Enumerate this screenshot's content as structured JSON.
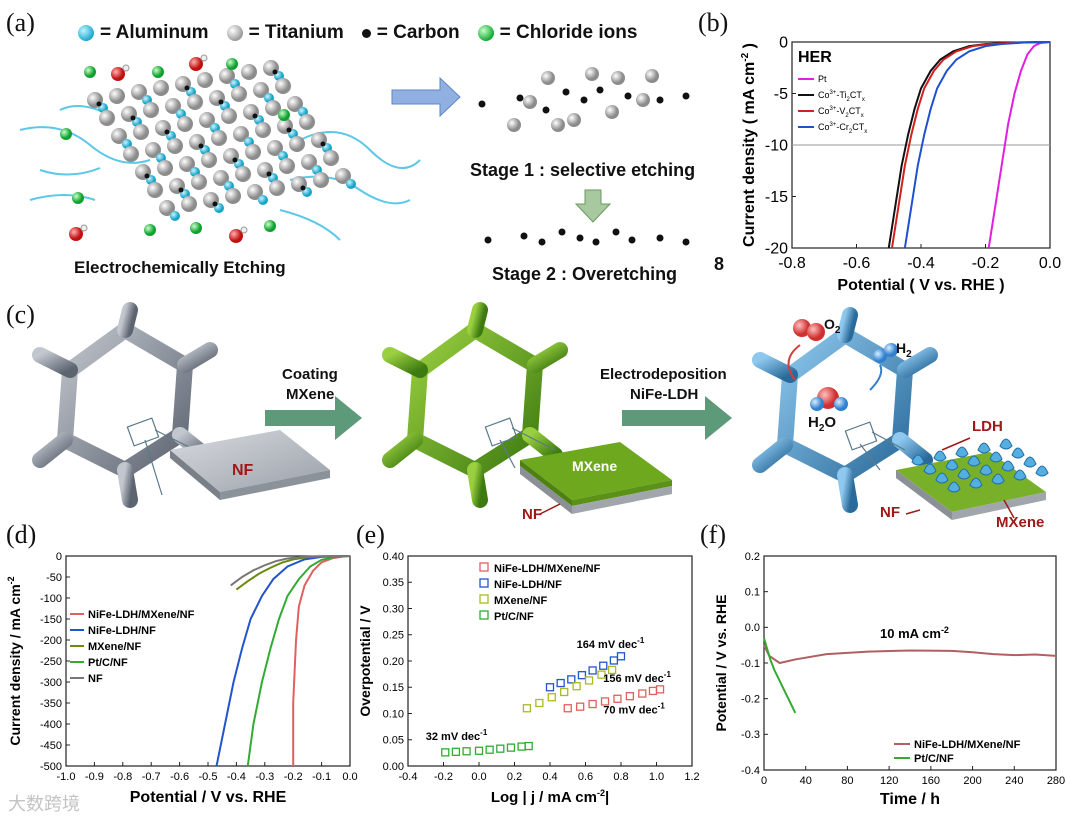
{
  "panels": {
    "a": "(a)",
    "b": "(b)",
    "c": "(c)",
    "d": "(d)",
    "e": "(e)",
    "f": "(f)"
  },
  "panel_a": {
    "legend": [
      {
        "label": "= Aluminum",
        "color": "#1aa9cf",
        "icon": "aluminum-ball-icon"
      },
      {
        "label": "= Titanium",
        "color": "#9a9a9a",
        "icon": "titanium-ball-icon"
      },
      {
        "label": "= Carbon",
        "color": "#111111",
        "icon": "carbon-dot-icon"
      },
      {
        "label": "= Chloride ions",
        "color": "#11aa33",
        "icon": "chloride-ball-icon"
      }
    ],
    "caption_left": "Electrochemically Etching",
    "stage1": "Stage 1 : selective etching",
    "stage2": "Stage 2 : Overetching",
    "stray": "8"
  },
  "panel_c": {
    "step1": "Coating",
    "step1b": "MXene",
    "step2": "Electrodeposition",
    "step2b": "NiFe-LDH",
    "nf": "NF",
    "mxene": "MXene",
    "nf2": "NF",
    "o2": "O",
    "o2sub": "2",
    "h2": "H",
    "h2sub": "2",
    "h2o": "H",
    "h2osub": "2",
    "h2oO": "O",
    "ldh": "LDH",
    "nf3": "NF",
    "mxene3": "MXene"
  },
  "watermark": "大数跨境",
  "chart_data": [
    {
      "id": "b",
      "type": "line",
      "title": "HER",
      "xlabel": "Potential ( V vs. RHE )",
      "ylabel": "Current density ( mA cm",
      "ylabel_sup": "-2",
      "ylabel_end": ")",
      "xlim": [
        -0.8,
        0.0
      ],
      "ylim": [
        -20,
        0
      ],
      "xticks": [
        "-0.8",
        "-0.6",
        "-0.4",
        "-0.2",
        "0.0"
      ],
      "yticks": [
        "0",
        "-5",
        "-10",
        "-15",
        "-20"
      ],
      "reference_line_y": -10,
      "series": [
        {
          "name": "Pt",
          "color": "#e020e0",
          "x": [
            -0.19,
            -0.17,
            -0.15,
            -0.13,
            -0.11,
            -0.09,
            -0.07,
            -0.05,
            -0.03,
            0.0
          ],
          "y": [
            -20,
            -16,
            -12,
            -8,
            -5,
            -2.8,
            -1.2,
            -0.4,
            -0.1,
            0
          ]
        },
        {
          "name": "Co3+-Ti2CTx",
          "color": "#111111",
          "x": [
            -0.5,
            -0.48,
            -0.46,
            -0.44,
            -0.42,
            -0.4,
            -0.37,
            -0.34,
            -0.3,
            -0.25,
            -0.2,
            -0.1,
            0.0
          ],
          "y": [
            -20,
            -16,
            -12,
            -9,
            -6.5,
            -4.5,
            -2.8,
            -1.7,
            -0.9,
            -0.4,
            -0.2,
            -0.05,
            0
          ]
        },
        {
          "name": "Co3+-V2CTx",
          "color": "#d02020",
          "x": [
            -0.49,
            -0.47,
            -0.45,
            -0.43,
            -0.41,
            -0.39,
            -0.36,
            -0.33,
            -0.29,
            -0.24,
            -0.19,
            -0.1,
            0.0
          ],
          "y": [
            -20,
            -16,
            -12,
            -9,
            -6.5,
            -4.5,
            -2.8,
            -1.7,
            -0.9,
            -0.4,
            -0.2,
            -0.05,
            0
          ]
        },
        {
          "name": "Co3+-Cr2CTx",
          "color": "#2050d0",
          "x": [
            -0.45,
            -0.43,
            -0.41,
            -0.39,
            -0.37,
            -0.35,
            -0.32,
            -0.29,
            -0.25,
            -0.2,
            -0.15,
            -0.08,
            0.0
          ],
          "y": [
            -20,
            -16,
            -12,
            -9,
            -6.5,
            -4.5,
            -2.8,
            -1.7,
            -0.9,
            -0.4,
            -0.2,
            -0.05,
            0
          ]
        }
      ],
      "legend_labels": [
        {
          "main": "Pt",
          "sup": "",
          "sub1": "",
          "mid": "",
          "sub2": ""
        },
        {
          "main": "Co",
          "sup": "3+",
          "mid": "-Ti",
          "sub1": "2",
          "end": "CT",
          "sub2": "x"
        },
        {
          "main": "Co",
          "sup": "3+",
          "mid": "-V",
          "sub1": "2",
          "end": "CT",
          "sub2": "x"
        },
        {
          "main": "Co",
          "sup": "3+",
          "mid": "-Cr",
          "sub1": "2",
          "end": "CT",
          "sub2": "x"
        }
      ]
    },
    {
      "id": "d",
      "type": "line",
      "xlabel": "Potential / V vs. RHE",
      "ylabel": "Current density / mA cm",
      "ylabel_sup": "-2",
      "xlim": [
        -1.0,
        0.0
      ],
      "ylim": [
        -500,
        0
      ],
      "xticks": [
        "-1.0",
        "-0.9",
        "-0.8",
        "-0.7",
        "-0.6",
        "-0.5",
        "-0.4",
        "-0.3",
        "-0.2",
        "-0.1",
        "0.0"
      ],
      "yticks": [
        "0",
        "-50",
        "-100",
        "-150",
        "-200",
        "-250",
        "-300",
        "-350",
        "-400",
        "-450",
        "-500"
      ],
      "series": [
        {
          "name": "NiFe-LDH/MXene/NF",
          "color": "#e06060",
          "x": [
            -0.2,
            -0.2,
            -0.19,
            -0.18,
            -0.16,
            -0.13,
            -0.1,
            -0.06,
            -0.02,
            0.0
          ],
          "y": [
            -500,
            -350,
            -200,
            -120,
            -70,
            -35,
            -15,
            -5,
            -1,
            0
          ]
        },
        {
          "name": "NiFe-LDH/NF",
          "color": "#2255cc",
          "x": [
            -0.47,
            -0.44,
            -0.41,
            -0.38,
            -0.35,
            -0.31,
            -0.27,
            -0.22,
            -0.16,
            -0.1,
            -0.04,
            0.0
          ],
          "y": [
            -500,
            -400,
            -300,
            -220,
            -150,
            -95,
            -55,
            -25,
            -8,
            -2,
            -0.5,
            0
          ]
        },
        {
          "name": "MXene/NF",
          "color": "#6a8a10",
          "x": [
            -0.4,
            -0.36,
            -0.32,
            -0.28,
            -0.24,
            -0.2,
            -0.15,
            -0.1,
            -0.05,
            0.0
          ],
          "y": [
            -80,
            -60,
            -42,
            -28,
            -16,
            -8,
            -3,
            -1,
            -0.2,
            0
          ]
        },
        {
          "name": "Pt/C/NF",
          "color": "#33aa33",
          "x": [
            -0.36,
            -0.34,
            -0.31,
            -0.28,
            -0.25,
            -0.22,
            -0.18,
            -0.14,
            -0.1,
            -0.05,
            0.0
          ],
          "y": [
            -500,
            -400,
            -300,
            -220,
            -150,
            -95,
            -55,
            -25,
            -9,
            -2,
            0
          ]
        },
        {
          "name": "NF",
          "color": "#777777",
          "x": [
            -0.42,
            -0.38,
            -0.34,
            -0.3,
            -0.26,
            -0.22,
            -0.17,
            -0.12,
            -0.06,
            0.0
          ],
          "y": [
            -70,
            -50,
            -34,
            -22,
            -12,
            -6,
            -2.5,
            -1,
            -0.2,
            0
          ]
        }
      ]
    },
    {
      "id": "e",
      "type": "scatter",
      "xlabel": "Log | j / mA cm",
      "xlabel_sup": "-2",
      "xlabel_end": "|",
      "ylabel": "Overpotential / V",
      "xlim": [
        -0.4,
        1.2
      ],
      "ylim": [
        0.0,
        0.4
      ],
      "xticks": [
        "-0.4",
        "-0.2",
        "0.0",
        "0.2",
        "0.4",
        "0.6",
        "0.8",
        "1.0",
        "1.2"
      ],
      "yticks": [
        "0.00",
        "0.05",
        "0.10",
        "0.15",
        "0.20",
        "0.25",
        "0.30",
        "0.35",
        "0.40"
      ],
      "series": [
        {
          "name": "NiFe-LDH/MXene/NF",
          "color": "#e06060",
          "x": [
            0.5,
            0.57,
            0.64,
            0.71,
            0.78,
            0.85,
            0.92,
            0.98,
            1.02
          ],
          "y": [
            0.11,
            0.113,
            0.118,
            0.123,
            0.128,
            0.133,
            0.138,
            0.143,
            0.146
          ]
        },
        {
          "name": "NiFe-LDH/NF",
          "color": "#2255cc",
          "x": [
            0.4,
            0.46,
            0.52,
            0.58,
            0.64,
            0.7,
            0.76,
            0.8
          ],
          "y": [
            0.15,
            0.158,
            0.165,
            0.173,
            0.182,
            0.191,
            0.201,
            0.209
          ]
        },
        {
          "name": "MXene/NF",
          "color": "#aabb22",
          "x": [
            0.27,
            0.34,
            0.41,
            0.48,
            0.55,
            0.62,
            0.69,
            0.75
          ],
          "y": [
            0.11,
            0.12,
            0.131,
            0.141,
            0.152,
            0.163,
            0.174,
            0.183
          ]
        },
        {
          "name": "Pt/C/NF",
          "color": "#33aa33",
          "x": [
            -0.19,
            -0.13,
            -0.07,
            0.0,
            0.06,
            0.12,
            0.18,
            0.24,
            0.28
          ],
          "y": [
            0.026,
            0.027,
            0.028,
            0.029,
            0.031,
            0.033,
            0.035,
            0.037,
            0.038
          ]
        }
      ],
      "annotations": [
        {
          "text": "164 mV dec",
          "sup": "-1",
          "x": 0.55,
          "y": 0.225
        },
        {
          "text": "156 mV dec",
          "sup": "-1",
          "x": 0.7,
          "y": 0.16
        },
        {
          "text": "70 mV dec",
          "sup": "-1",
          "x": 0.7,
          "y": 0.1
        },
        {
          "text": "32 mV dec",
          "sup": "-1",
          "x": -0.3,
          "y": 0.05
        }
      ]
    },
    {
      "id": "f",
      "type": "line",
      "xlabel": "Time / h",
      "ylabel": "Potential / V vs. RHE",
      "xlim": [
        0,
        280
      ],
      "ylim": [
        -0.4,
        0.2
      ],
      "xticks": [
        "0",
        "40",
        "80",
        "120",
        "160",
        "200",
        "240",
        "280"
      ],
      "yticks": [
        "0.2",
        "0.1",
        "0.0",
        "-0.1",
        "-0.2",
        "-0.3",
        "-0.4"
      ],
      "annotation": {
        "text": "10 mA cm",
        "sup": "-2"
      },
      "series": [
        {
          "name": "NiFe-LDH/MXene/NF",
          "color": "#b06060",
          "x": [
            0,
            5,
            15,
            30,
            60,
            100,
            140,
            180,
            200,
            220,
            240,
            260,
            280
          ],
          "y": [
            -0.05,
            -0.08,
            -0.1,
            -0.09,
            -0.075,
            -0.068,
            -0.065,
            -0.066,
            -0.07,
            -0.075,
            -0.078,
            -0.076,
            -0.08
          ]
        },
        {
          "name": "Pt/C/NF",
          "color": "#33aa33",
          "x": [
            0,
            3,
            6,
            10,
            15,
            20,
            25,
            30
          ],
          "y": [
            -0.03,
            -0.06,
            -0.09,
            -0.12,
            -0.15,
            -0.18,
            -0.21,
            -0.24
          ]
        }
      ]
    }
  ]
}
